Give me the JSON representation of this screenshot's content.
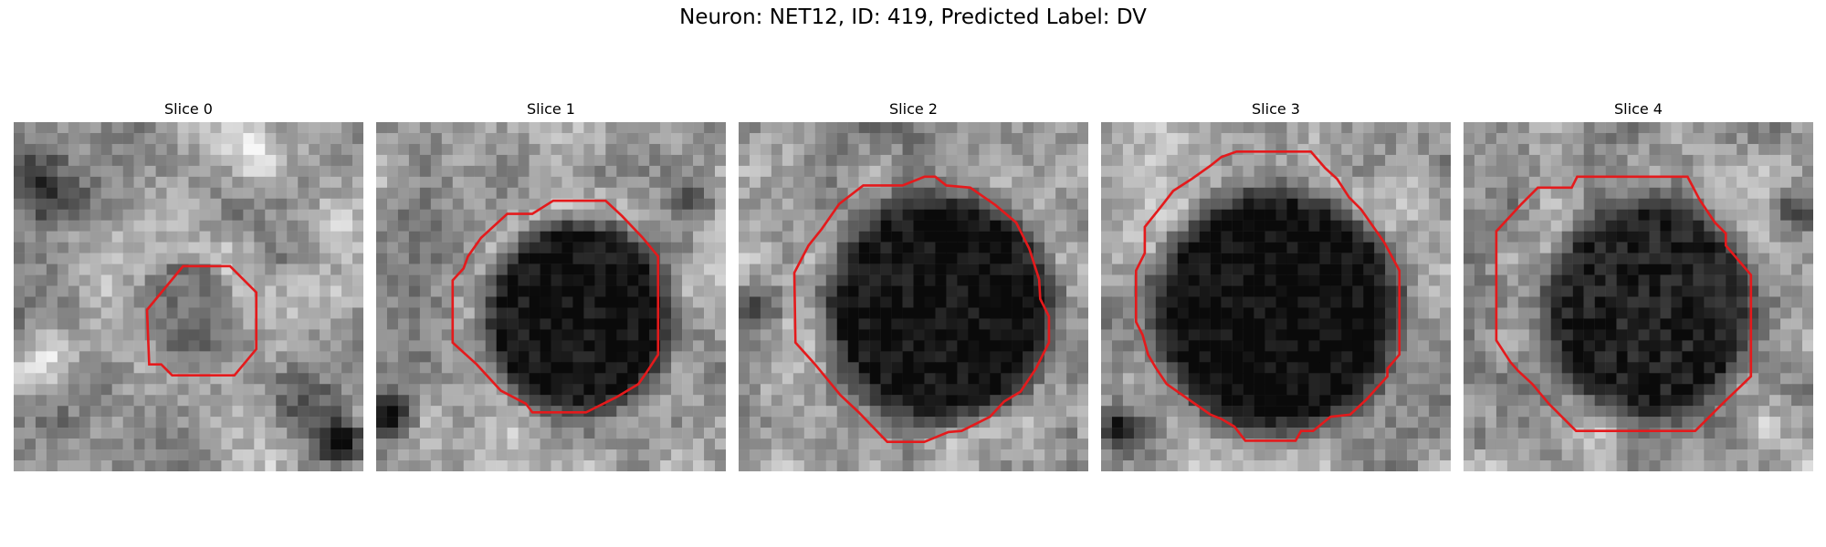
{
  "figure": {
    "title": "Neuron: NET12, ID: 419, Predicted Label: DV",
    "contour_color": "#e41a1c"
  },
  "panels": [
    {
      "title": "Slice 0"
    },
    {
      "title": "Slice 1"
    },
    {
      "title": "Slice 2"
    },
    {
      "title": "Slice 3"
    },
    {
      "title": "Slice 4"
    }
  ]
}
